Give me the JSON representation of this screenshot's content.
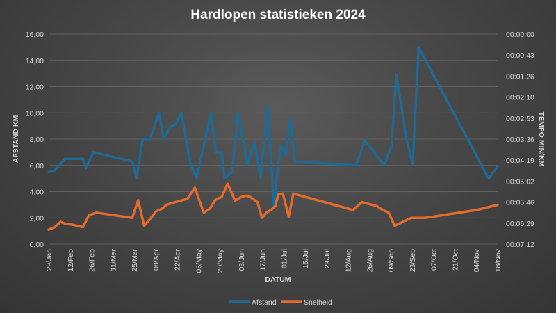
{
  "chart_data": {
    "type": "line",
    "title": "Hardlopen statistieken 2024",
    "xlabel": "DATUM",
    "ylabel": "AFSTAND KM",
    "y2label": "TEMPO MIN/KM",
    "ylim": [
      0,
      16
    ],
    "y_ticks": [
      "0,00",
      "2,00",
      "4,00",
      "6,00",
      "8,00",
      "10,00",
      "12,00",
      "14,00",
      "16,00"
    ],
    "y2_ticks": [
      "00:00:00",
      "00:00:43",
      "00:01:26",
      "00:02:10",
      "00:02:53",
      "00:03:36",
      "00:04:19",
      "00:05:02",
      "00:05:46",
      "00:06:29",
      "00:07:12"
    ],
    "x_range": [
      "2024-01-29",
      "2024-11-25"
    ],
    "x_ticks": [
      "29/Jan",
      "12/Feb",
      "26/Feb",
      "11/Mar",
      "25/Mar",
      "08/Apr",
      "22/Apr",
      "06/May",
      "20/May",
      "03/Jun",
      "17/Jun",
      "01/Jul",
      "15/Jul",
      "29/Jul",
      "12/Aug",
      "26/Aug",
      "09/Sep",
      "23/Sep",
      "07/Oct",
      "21/Oct",
      "04/Nov",
      "18/Nov"
    ],
    "grid": true,
    "legend": "bottom",
    "series": [
      {
        "name": "Afstand",
        "color": "#1f6a94",
        "axis": "left",
        "points": [
          [
            "2024-01-29",
            5.5
          ],
          [
            "2024-02-02",
            5.6
          ],
          [
            "2024-02-05",
            6.0
          ],
          [
            "2024-02-09",
            6.5
          ],
          [
            "2024-02-13",
            6.5
          ],
          [
            "2024-02-17",
            6.5
          ],
          [
            "2024-02-21",
            6.5
          ],
          [
            "2024-02-23",
            5.8
          ],
          [
            "2024-02-28",
            7.0
          ],
          [
            "2024-03-25",
            6.3
          ],
          [
            "2024-03-28",
            5.0
          ],
          [
            "2024-04-01",
            8.0
          ],
          [
            "2024-04-06",
            8.0
          ],
          [
            "2024-04-12",
            10.0
          ],
          [
            "2024-04-15",
            8.0
          ],
          [
            "2024-04-20",
            9.0
          ],
          [
            "2024-04-23",
            9.1
          ],
          [
            "2024-04-27",
            10.0
          ],
          [
            "2024-05-03",
            6.2
          ],
          [
            "2024-05-07",
            5.0
          ],
          [
            "2024-05-17",
            10.0
          ],
          [
            "2024-05-20",
            7.0
          ],
          [
            "2024-05-24",
            7.0
          ],
          [
            "2024-05-26",
            5.0
          ],
          [
            "2024-05-31",
            5.5
          ],
          [
            "2024-06-04",
            10.0
          ],
          [
            "2024-06-08",
            7.5
          ],
          [
            "2024-06-10",
            6.0
          ],
          [
            "2024-06-15",
            7.8
          ],
          [
            "2024-06-19",
            5.0
          ],
          [
            "2024-06-24",
            10.5
          ],
          [
            "2024-06-28",
            2.8
          ],
          [
            "2024-07-01",
            6.2
          ],
          [
            "2024-07-03",
            7.5
          ],
          [
            "2024-07-06",
            6.8
          ],
          [
            "2024-07-09",
            9.6
          ],
          [
            "2024-07-12",
            6.3
          ],
          [
            "2024-08-22",
            6.0
          ],
          [
            "2024-08-28",
            7.9
          ],
          [
            "2024-09-10",
            6.0
          ],
          [
            "2024-09-15",
            7.5
          ],
          [
            "2024-09-18",
            12.9
          ],
          [
            "2024-09-25",
            8.0
          ],
          [
            "2024-09-29",
            6.0
          ],
          [
            "2024-10-03",
            15.0
          ],
          [
            "2024-11-19",
            5.0
          ],
          [
            "2024-11-25",
            5.9
          ]
        ]
      },
      {
        "name": "Snelheid",
        "color": "#e36c2d",
        "axis": "right",
        "points": [
          [
            "2024-01-29",
            1.1
          ],
          [
            "2024-02-02",
            1.3
          ],
          [
            "2024-02-06",
            1.7
          ],
          [
            "2024-02-09",
            1.55
          ],
          [
            "2024-02-13",
            1.5
          ],
          [
            "2024-02-17",
            1.4
          ],
          [
            "2024-02-21",
            1.3
          ],
          [
            "2024-02-25",
            2.2
          ],
          [
            "2024-03-01",
            2.4
          ],
          [
            "2024-03-25",
            2.0
          ],
          [
            "2024-03-29",
            3.35
          ],
          [
            "2024-04-02",
            1.4
          ],
          [
            "2024-04-06",
            1.9
          ],
          [
            "2024-04-10",
            2.5
          ],
          [
            "2024-04-14",
            2.7
          ],
          [
            "2024-04-17",
            3.0
          ],
          [
            "2024-04-26",
            3.3
          ],
          [
            "2024-05-01",
            3.45
          ],
          [
            "2024-05-06",
            4.3
          ],
          [
            "2024-05-12",
            2.4
          ],
          [
            "2024-05-16",
            2.7
          ],
          [
            "2024-05-20",
            3.4
          ],
          [
            "2024-05-24",
            3.6
          ],
          [
            "2024-05-28",
            4.6
          ],
          [
            "2024-06-02",
            3.3
          ],
          [
            "2024-06-06",
            3.6
          ],
          [
            "2024-06-10",
            3.7
          ],
          [
            "2024-06-12",
            3.6
          ],
          [
            "2024-06-17",
            3.2
          ],
          [
            "2024-06-20",
            2.0
          ],
          [
            "2024-06-23",
            2.4
          ],
          [
            "2024-06-26",
            2.6
          ],
          [
            "2024-06-29",
            2.9
          ],
          [
            "2024-07-01",
            3.8
          ],
          [
            "2024-07-04",
            3.85
          ],
          [
            "2024-07-08",
            2.1
          ],
          [
            "2024-07-11",
            3.85
          ],
          [
            "2024-08-20",
            2.6
          ],
          [
            "2024-08-26",
            3.2
          ],
          [
            "2024-09-05",
            2.9
          ],
          [
            "2024-09-09",
            2.6
          ],
          [
            "2024-09-13",
            2.4
          ],
          [
            "2024-09-17",
            1.4
          ],
          [
            "2024-09-28",
            2.0
          ],
          [
            "2024-10-07",
            2.0
          ],
          [
            "2024-11-11",
            2.6
          ],
          [
            "2024-11-25",
            3.0
          ]
        ]
      }
    ]
  }
}
